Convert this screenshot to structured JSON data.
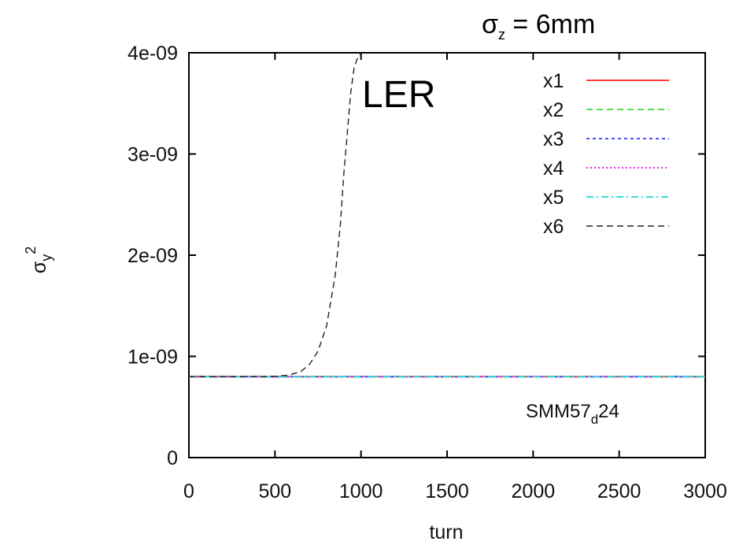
{
  "header": {
    "sigma_symbol": "σ",
    "sigma_sub": "z",
    "sigma_rest": " = 6mm"
  },
  "annotations": {
    "ring": "LER",
    "run_main": "SMM57",
    "run_sub": "d",
    "run_tail": "24"
  },
  "chart_data": {
    "type": "line",
    "xlabel": "turn",
    "ylabel_main": "σ",
    "ylabel_sub": "y",
    "ylabel_sup": "2",
    "xlim": [
      0,
      3000
    ],
    "ylim": [
      0,
      4e-09
    ],
    "x_ticks": [
      "0",
      "500",
      "1000",
      "1500",
      "2000",
      "2500",
      "3000"
    ],
    "y_ticks": [
      "0",
      "1e-09",
      "2e-09",
      "3e-09",
      "4e-09"
    ],
    "legend_position": "top-right",
    "series": [
      {
        "name": "x1",
        "color": "#ff3b3b",
        "dash": "solid",
        "x": [
          0,
          500,
          1000,
          1500,
          2000,
          2500,
          3000
        ],
        "y": [
          8e-10,
          8e-10,
          8e-10,
          8e-10,
          8e-10,
          8e-10,
          8e-10
        ]
      },
      {
        "name": "x2",
        "color": "#55dd55",
        "dash": "dashed",
        "x": [
          0,
          500,
          1000,
          1500,
          2000,
          2500,
          3000
        ],
        "y": [
          8e-10,
          8e-10,
          8e-10,
          8e-10,
          8e-10,
          8e-10,
          8e-10
        ]
      },
      {
        "name": "x3",
        "color": "#4a4aff",
        "dash": "short-dashed",
        "x": [
          0,
          500,
          1000,
          1500,
          2000,
          2500,
          3000
        ],
        "y": [
          8e-10,
          8e-10,
          8e-10,
          8e-10,
          8e-10,
          8e-10,
          8e-10
        ]
      },
      {
        "name": "x4",
        "color": "#dd33dd",
        "dash": "dotted",
        "x": [
          0,
          500,
          1000,
          1500,
          2000,
          2500,
          3000
        ],
        "y": [
          8e-10,
          8e-10,
          8e-10,
          8e-10,
          8e-10,
          8e-10,
          8e-10
        ]
      },
      {
        "name": "x5",
        "color": "#33dddd",
        "dash": "dash-dot",
        "x": [
          0,
          500,
          1000,
          1500,
          2000,
          2500,
          3000
        ],
        "y": [
          8e-10,
          8e-10,
          8e-10,
          8e-10,
          8e-10,
          8e-10,
          8e-10
        ]
      },
      {
        "name": "x6",
        "color": "#222222",
        "dash": "dashed",
        "x": [
          0,
          400,
          500,
          580,
          650,
          700,
          750,
          800,
          850,
          880,
          900,
          920,
          940,
          960,
          980,
          1000
        ],
        "y": [
          8e-10,
          8e-10,
          8.02e-10,
          8.15e-10,
          8.5e-10,
          9.2e-10,
          1.05e-09,
          1.3e-09,
          1.8e-09,
          2.3e-09,
          2.8e-09,
          3.2e-09,
          3.6e-09,
          3.85e-09,
          3.95e-09,
          4e-09
        ]
      }
    ]
  }
}
